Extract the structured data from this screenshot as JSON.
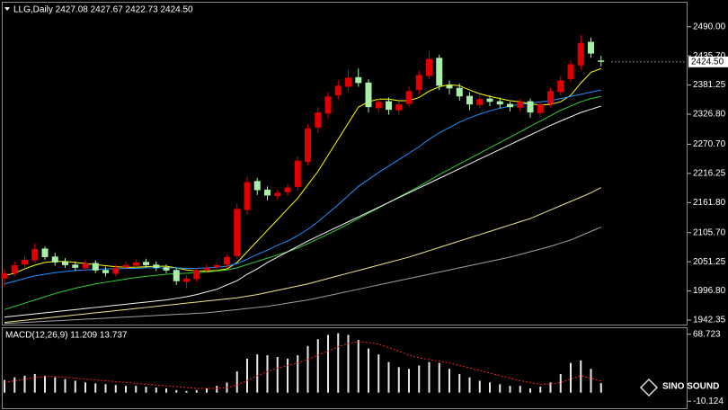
{
  "chart_data": [
    {
      "type": "candlestick",
      "header": "LLG,Daily 2427.08 2427.67 2422.73 2424.50",
      "open": [
        2020,
        2030,
        2046,
        2054,
        2076,
        2061,
        2052,
        2046,
        2039,
        2049,
        2036,
        2029,
        2041,
        2044,
        2051,
        2046,
        2041,
        2036,
        2014,
        2019,
        2036,
        2041,
        2046,
        2062,
        2148,
        2202,
        2186,
        2174,
        2181,
        2191,
        2238,
        2302,
        2328,
        2362,
        2378,
        2396,
        2386,
        2338,
        2351,
        2334,
        2346,
        2372,
        2398,
        2432,
        2381,
        2376,
        2361,
        2344,
        2356,
        2351,
        2346,
        2339,
        2351,
        2329,
        2346,
        2368,
        2392,
        2418,
        2462,
        2427.08
      ],
      "high": [
        2038,
        2052,
        2062,
        2085,
        2080,
        2068,
        2058,
        2052,
        2055,
        2054,
        2042,
        2046,
        2052,
        2056,
        2057,
        2052,
        2046,
        2040,
        2026,
        2040,
        2046,
        2050,
        2064,
        2160,
        2210,
        2208,
        2192,
        2186,
        2196,
        2248,
        2308,
        2340,
        2368,
        2390,
        2410,
        2412,
        2392,
        2356,
        2358,
        2350,
        2378,
        2408,
        2445,
        2438,
        2390,
        2384,
        2368,
        2362,
        2362,
        2358,
        2350,
        2356,
        2356,
        2350,
        2376,
        2398,
        2428,
        2475,
        2470,
        2436
      ],
      "low": [
        2005,
        2024,
        2040,
        2050,
        2055,
        2044,
        2040,
        2034,
        2033,
        2030,
        2024,
        2024,
        2036,
        2040,
        2040,
        2034,
        2030,
        2008,
        2002,
        2014,
        2030,
        2036,
        2040,
        2056,
        2140,
        2176,
        2166,
        2168,
        2174,
        2184,
        2232,
        2292,
        2318,
        2354,
        2370,
        2378,
        2330,
        2330,
        2326,
        2326,
        2340,
        2364,
        2392,
        2372,
        2364,
        2352,
        2334,
        2338,
        2342,
        2338,
        2332,
        2332,
        2320,
        2322,
        2340,
        2362,
        2386,
        2410,
        2432,
        2416
      ],
      "close": [
        2030,
        2045,
        2055,
        2075,
        2060,
        2050,
        2045,
        2040,
        2048,
        2035,
        2030,
        2040,
        2045,
        2050,
        2045,
        2040,
        2035,
        2015,
        2020,
        2035,
        2040,
        2045,
        2060,
        2150,
        2200,
        2185,
        2175,
        2180,
        2190,
        2240,
        2300,
        2330,
        2360,
        2380,
        2395,
        2385,
        2340,
        2350,
        2335,
        2345,
        2370,
        2400,
        2430,
        2380,
        2375,
        2360,
        2345,
        2355,
        2350,
        2345,
        2340,
        2350,
        2330,
        2345,
        2370,
        2390,
        2420,
        2460,
        2440,
        2424.5
      ],
      "up_color": "#e00000",
      "down_color": "#a8f0a8",
      "series": [
        {
          "color": "#ffff00",
          "values": [
            2025,
            2030,
            2038,
            2045,
            2050,
            2052,
            2052,
            2050,
            2048,
            2046,
            2044,
            2042,
            2041,
            2041,
            2042,
            2043,
            2043,
            2040,
            2036,
            2034,
            2034,
            2035,
            2038,
            2050,
            2070,
            2090,
            2110,
            2130,
            2150,
            2170,
            2195,
            2220,
            2250,
            2280,
            2310,
            2340,
            2350,
            2355,
            2355,
            2352,
            2352,
            2358,
            2370,
            2378,
            2382,
            2380,
            2372,
            2365,
            2360,
            2356,
            2352,
            2350,
            2346,
            2344,
            2345,
            2350,
            2362,
            2385,
            2405,
            2412
          ]
        },
        {
          "color": "#1e90ff",
          "values": [
            2010,
            2015,
            2020,
            2025,
            2028,
            2031,
            2033,
            2035,
            2036,
            2037,
            2038,
            2038,
            2039,
            2039,
            2040,
            2040,
            2040,
            2040,
            2039,
            2039,
            2040,
            2041,
            2043,
            2048,
            2056,
            2065,
            2073,
            2082,
            2090,
            2100,
            2112,
            2126,
            2142,
            2158,
            2175,
            2192,
            2205,
            2218,
            2230,
            2242,
            2254,
            2266,
            2280,
            2292,
            2302,
            2312,
            2320,
            2327,
            2333,
            2338,
            2342,
            2345,
            2347,
            2350,
            2352,
            2356,
            2360,
            2364,
            2368,
            2372
          ]
        },
        {
          "color": "#32cd32",
          "values": [
            1962,
            1968,
            1974,
            1980,
            1986,
            1992,
            1997,
            2002,
            2006,
            2010,
            2013,
            2016,
            2019,
            2022,
            2024,
            2026,
            2028,
            2029,
            2030,
            2031,
            2032,
            2034,
            2036,
            2040,
            2046,
            2052,
            2058,
            2064,
            2070,
            2077,
            2085,
            2094,
            2103,
            2112,
            2122,
            2132,
            2142,
            2152,
            2162,
            2172,
            2182,
            2192,
            2203,
            2214,
            2224,
            2234,
            2244,
            2254,
            2264,
            2274,
            2284,
            2294,
            2304,
            2314,
            2324,
            2334,
            2342,
            2350,
            2356,
            2360
          ]
        },
        {
          "color": "#f5f5f5",
          "values": [
            1948,
            1950,
            1952,
            1954,
            1956,
            1958,
            1960,
            1962,
            1964,
            1966,
            1968,
            1970,
            1972,
            1974,
            1976,
            1978,
            1980,
            1983,
            1986,
            1990,
            1995,
            2000,
            2008,
            2016,
            2028,
            2038,
            2050,
            2060,
            2070,
            2080,
            2090,
            2099,
            2108,
            2117,
            2126,
            2135,
            2144,
            2153,
            2162,
            2171,
            2180,
            2189,
            2198,
            2207,
            2216,
            2225,
            2234,
            2243,
            2252,
            2261,
            2270,
            2279,
            2288,
            2297,
            2306,
            2314,
            2322,
            2330,
            2336,
            2342
          ]
        },
        {
          "color": "#f0e68c",
          "values": [
            1938,
            1940,
            1942,
            1944,
            1946,
            1948,
            1950,
            1952,
            1954,
            1956,
            1958,
            1960,
            1962,
            1964,
            1966,
            1968,
            1970,
            1972,
            1974,
            1976,
            1978,
            1980,
            1982,
            1984,
            1987,
            1990,
            1994,
            1998,
            2002,
            2006,
            2010,
            2015,
            2020,
            2025,
            2030,
            2035,
            2040,
            2045,
            2050,
            2055,
            2060,
            2066,
            2072,
            2078,
            2084,
            2090,
            2096,
            2102,
            2108,
            2114,
            2120,
            2126,
            2132,
            2140,
            2148,
            2156,
            2164,
            2172,
            2180,
            2190
          ]
        },
        {
          "color": "#a0a0a0",
          "values": [
            1936,
            1937,
            1938,
            1939,
            1940,
            1941,
            1942,
            1943,
            1944,
            1945,
            1946,
            1947,
            1948,
            1949,
            1950,
            1951,
            1952,
            1953,
            1954,
            1955,
            1956,
            1958,
            1960,
            1962,
            1964,
            1966,
            1968,
            1971,
            1974,
            1977,
            1980,
            1984,
            1988,
            1992,
            1996,
            2000,
            2004,
            2008,
            2012,
            2016,
            2020,
            2024,
            2028,
            2032,
            2036,
            2040,
            2044,
            2048,
            2052,
            2056,
            2060,
            2065,
            2070,
            2075,
            2080,
            2086,
            2092,
            2100,
            2108,
            2116
          ]
        }
      ],
      "ylim": [
        1934,
        2535
      ],
      "yticks": [
        {
          "value": 2490,
          "label": "2490.00"
        },
        {
          "value": 2435.7,
          "label": "2435.70"
        },
        {
          "value": 2381.25,
          "label": "2381.25"
        },
        {
          "value": 2326.8,
          "label": "2326.80"
        },
        {
          "value": 2270.7,
          "label": "2270.70"
        },
        {
          "value": 2216.25,
          "label": "2216.25"
        },
        {
          "value": 2161.8,
          "label": "2161.80"
        },
        {
          "value": 2105.7,
          "label": "2105.70"
        },
        {
          "value": 2051.25,
          "label": "2051.25"
        },
        {
          "value": 1996.8,
          "label": "1996.80"
        },
        {
          "value": 1942.35,
          "label": "1942.35"
        }
      ],
      "last_price": {
        "value": 2424.5,
        "label": "2424.50"
      }
    },
    {
      "type": "macd",
      "header": "MACD(12,26,9) 11.209 13.737",
      "histogram": [
        15,
        18,
        20,
        22,
        20,
        18,
        16,
        14,
        12,
        11,
        10,
        9,
        8,
        8,
        7,
        6,
        5,
        3,
        2,
        3,
        5,
        8,
        12,
        25,
        40,
        45,
        44,
        42,
        40,
        44,
        55,
        63,
        68,
        70,
        68,
        62,
        52,
        45,
        36,
        30,
        28,
        32,
        36,
        35,
        28,
        22,
        18,
        14,
        12,
        10,
        8,
        8,
        5,
        7,
        12,
        22,
        35,
        38,
        28,
        11.209
      ],
      "signal": [
        12,
        14,
        16,
        18,
        19,
        19,
        18,
        17,
        16,
        15,
        14,
        13,
        12,
        11,
        10,
        9,
        8,
        7,
        6,
        5,
        5,
        5,
        6,
        9,
        14,
        20,
        25,
        29,
        32,
        35,
        39,
        44,
        49,
        54,
        58,
        60,
        59,
        57,
        53,
        49,
        44,
        41,
        39,
        37,
        35,
        32,
        29,
        26,
        23,
        20,
        17,
        14,
        12,
        10,
        10,
        12,
        16,
        20,
        17,
        13.737
      ],
      "histogram_color": "#e8e8e8",
      "signal_color": "#ff2020",
      "ylim": [
        -18.3,
        75.9
      ],
      "yticks": [
        68.723,
        -10.124
      ],
      "watermark": "SINO SOUND"
    }
  ]
}
